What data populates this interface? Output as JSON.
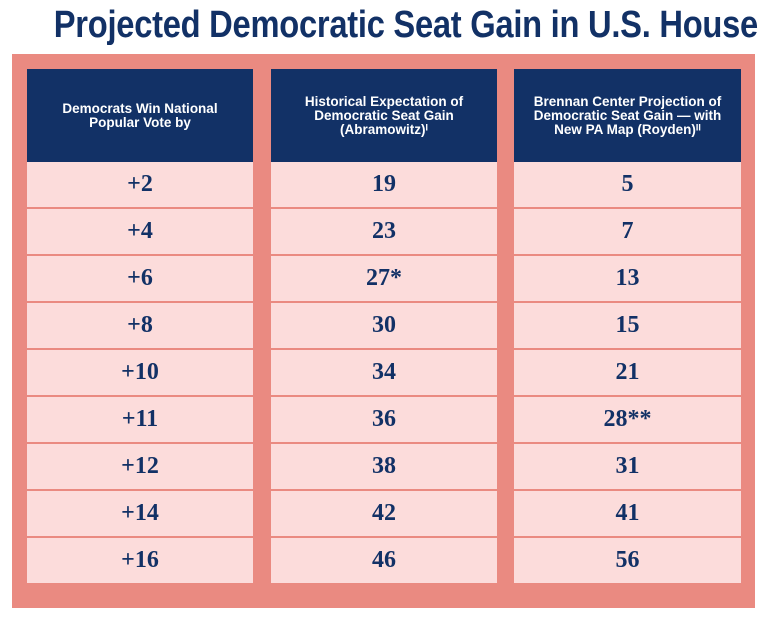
{
  "title": "Projected Democratic Seat Gain in U.S. House",
  "chart_data": {
    "type": "table",
    "columns": [
      "Democrats Win National Popular Vote by",
      "Historical Expectation of Democratic Seat Gain (Abramowitz)ᴵ",
      "Brennan Center Projection of Democratic Seat Gain — with New PA Map (Royden)ᴵᴵ"
    ],
    "rows": [
      [
        "+2",
        "19",
        "5"
      ],
      [
        "+4",
        "23",
        "7"
      ],
      [
        "+6",
        "27*",
        "13"
      ],
      [
        "+8",
        "30",
        "15"
      ],
      [
        "+10",
        "34",
        "21"
      ],
      [
        "+11",
        "36",
        "28**"
      ],
      [
        "+12",
        "38",
        "31"
      ],
      [
        "+14",
        "42",
        "41"
      ],
      [
        "+16",
        "46",
        "56"
      ]
    ]
  },
  "colors": {
    "navy": "#123166",
    "frame": "#ea8a81",
    "cell": "#fcdcdb"
  }
}
